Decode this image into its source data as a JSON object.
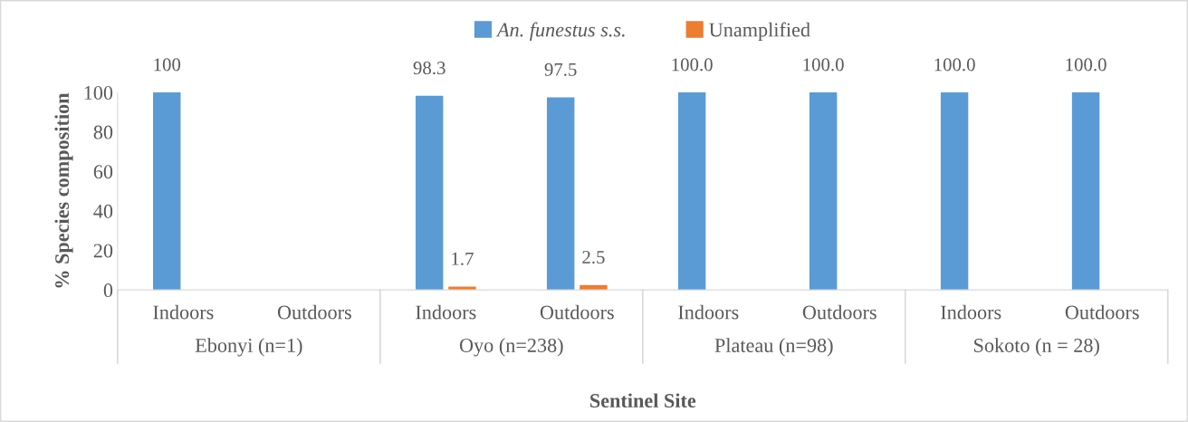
{
  "chart_data": {
    "type": "bar",
    "categories": [
      "Indoors",
      "Outdoors",
      "Indoors",
      "Outdoors",
      "Indoors",
      "Outdoors",
      "Indoors",
      "Outdoors"
    ],
    "series": [
      {
        "name": "An. funestus s.s.",
        "color": "#5b9bd5",
        "values": [
          100,
          null,
          98.3,
          97.5,
          100,
          100,
          100,
          100
        ],
        "value_labels": [
          "100",
          null,
          "98.3",
          "97.5",
          "100.0",
          "100.0",
          "100.0",
          "100.0"
        ]
      },
      {
        "name": "Unamplified",
        "color": "#ed7d31",
        "values": [
          null,
          null,
          1.7,
          2.5,
          null,
          null,
          null,
          null
        ],
        "value_labels": [
          null,
          null,
          "1.7",
          "2.5",
          null,
          null,
          null,
          null
        ]
      }
    ],
    "annotations": [
      "Ebonyi (n=1)",
      "Oyo (n=238)",
      "Plateau (n=98)",
      "Sokoto (n = 28)"
    ],
    "xlabel": "Sentinel Site",
    "ylabel": "% Species composition",
    "ylim": [
      0,
      100
    ],
    "yticks": [
      0,
      20,
      40,
      60,
      80,
      100
    ],
    "legend": "top",
    "grid": false
  }
}
